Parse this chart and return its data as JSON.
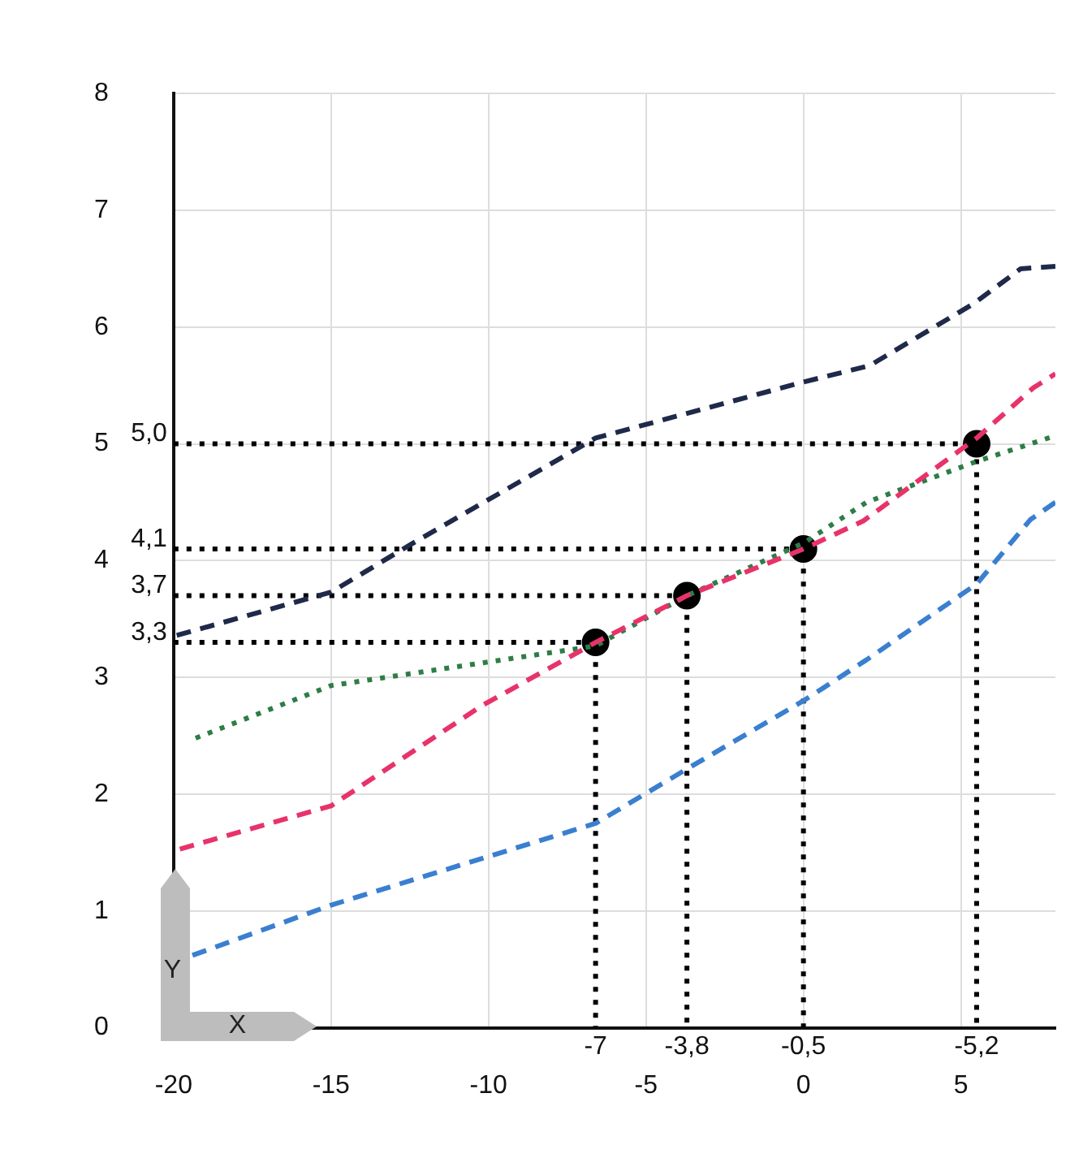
{
  "chart_data": {
    "type": "line",
    "xlabel": "X",
    "ylabel": "Y",
    "xlim": [
      -20,
      8
    ],
    "xticks": [
      -20,
      -15,
      -10,
      -5,
      0,
      5
    ],
    "ylim": [
      0,
      8
    ],
    "yticks": [
      0,
      1,
      2,
      3,
      4,
      5,
      6,
      7,
      8
    ],
    "grid": true,
    "legend": false,
    "series": [
      {
        "color": "#1f2a4a",
        "line_style": "dashed",
        "x": [
          -19.9,
          -15,
          -12.4,
          -6.6,
          0,
          2.1,
          5.4,
          6.9,
          8
        ],
        "values": [
          3.36,
          3.73,
          4.15,
          5.05,
          5.53,
          5.67,
          6.2,
          6.5,
          6.52
        ]
      },
      {
        "color": "#e8336a",
        "line_style": "dashed",
        "x": [
          -19.8,
          -15,
          -10.2,
          -6.6,
          -3.7,
          0,
          1.9,
          5.5,
          7.3,
          8
        ],
        "values": [
          1.53,
          1.9,
          2.76,
          3.3,
          3.7,
          4.1,
          4.34,
          5.05,
          5.48,
          5.6
        ]
      },
      {
        "color": "#2e7d46",
        "line_style": "dotted",
        "x": [
          -19.3,
          -15,
          -6.6,
          -3.7,
          0,
          2,
          5.5,
          8
        ],
        "values": [
          2.48,
          2.93,
          3.27,
          3.7,
          4.15,
          4.5,
          4.85,
          5.07
        ]
      },
      {
        "color": "#3a7fd0",
        "line_style": "dashed",
        "x": [
          -19.4,
          -15,
          -6.6,
          -3.8,
          0,
          2,
          5.5,
          7.2,
          8
        ],
        "values": [
          0.62,
          1.05,
          1.75,
          2.2,
          2.8,
          3.15,
          3.8,
          4.35,
          4.5
        ]
      },
      {
        "color": "#000000",
        "line_style": "dotted",
        "x": [
          -20,
          -6.6,
          -6.6
        ],
        "values": [
          3.3,
          3.3,
          0
        ]
      },
      {
        "color": "#000000",
        "line_style": "dotted",
        "x": [
          -20,
          -3.7,
          -3.7
        ],
        "values": [
          3.7,
          3.7,
          0
        ]
      },
      {
        "color": "#000000",
        "line_style": "dotted",
        "x": [
          -20,
          0,
          0
        ],
        "values": [
          4.1,
          4.1,
          0
        ]
      },
      {
        "color": "#000000",
        "line_style": "dotted",
        "x": [
          -20,
          5.5,
          5.5
        ],
        "values": [
          5.0,
          5.0,
          0
        ]
      },
      {
        "type": "scatter",
        "color": "#000000",
        "marker": "circle",
        "x": [
          -6.6,
          -3.7,
          0,
          5.5
        ],
        "values": [
          3.3,
          3.7,
          4.1,
          5.0
        ]
      }
    ],
    "annotations": [
      {
        "text": "3,3",
        "x": -20,
        "y": 3.3
      },
      {
        "text": "3,7",
        "x": -20,
        "y": 3.7
      },
      {
        "text": "4,1",
        "x": -20,
        "y": 4.1
      },
      {
        "text": "5,0",
        "x": -20,
        "y": 5.0
      },
      {
        "text": "-7",
        "x": -6.6,
        "y": 0
      },
      {
        "text": "-3,8",
        "x": -3.7,
        "y": 0
      },
      {
        "text": "-0,5",
        "x": 0,
        "y": 0
      },
      {
        "text": "-5,2",
        "x": 5.5,
        "y": 0
      }
    ]
  }
}
